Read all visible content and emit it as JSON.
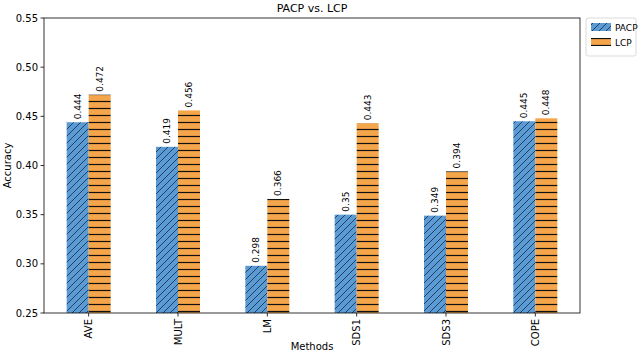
{
  "chart_data": {
    "type": "bar",
    "title": "PACP vs. LCP",
    "x_label": "Methods",
    "y_label": "Accuracy",
    "categories": [
      "AVE",
      "MULT",
      "LM",
      "SDS1",
      "SDS3",
      "COPE"
    ],
    "series": [
      {
        "name": "PACP",
        "color": "#5b9bd5",
        "values": [
          0.444,
          0.419,
          0.298,
          0.35,
          0.349,
          0.445
        ]
      },
      {
        "name": "LCP",
        "color": "#f5a54a",
        "values": [
          0.472,
          0.456,
          0.366,
          0.443,
          0.394,
          0.448
        ]
      }
    ],
    "ylim": [
      0.25,
      0.55
    ],
    "yticks": [
      0.25,
      {
        "value": 0.3,
        "label": "0.30"
      },
      0.35,
      {
        "value": 0.4,
        "label": "0.40"
      },
      0.45,
      {
        "value": 0.5,
        "label": "0.50"
      },
      0.55
    ],
    "data_labels": true,
    "legend": "upper right"
  }
}
